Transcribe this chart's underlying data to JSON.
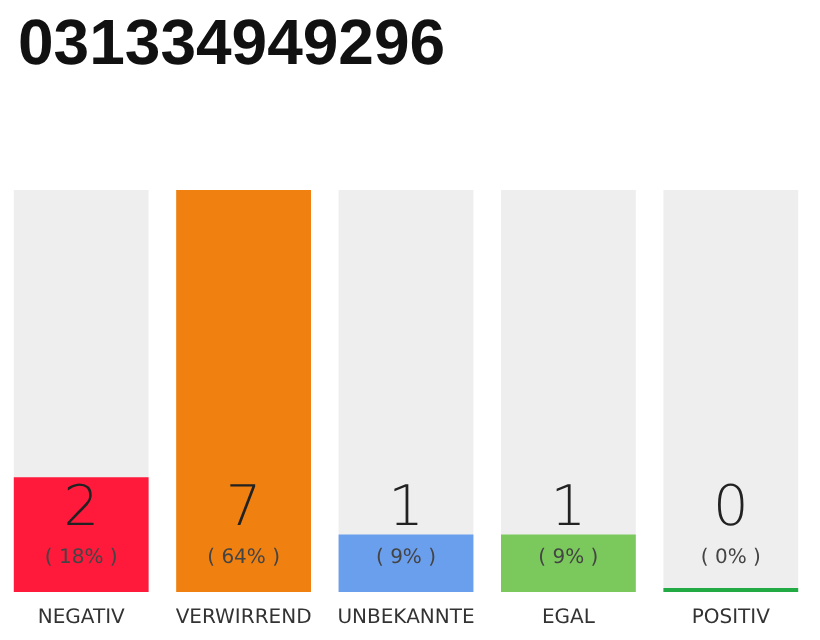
{
  "chart_data": {
    "type": "bar",
    "title": "031334949296",
    "categories": [
      "NEGATIV",
      "VERWIRREND",
      "UNBEKANNTE",
      "EGAL",
      "POSITIV"
    ],
    "values": [
      2,
      7,
      1,
      1,
      0
    ],
    "colors": [
      "#ff1a3c",
      "#f0800f",
      "#6a9fee",
      "#7bc95c",
      "#22aa44"
    ],
    "value_labels": [
      "2\n( 18% )",
      "7\n( 64% )",
      "1\n( 9% )",
      "1\n( 9% )",
      "0\n( 0% )"
    ],
    "grid": false
  }
}
